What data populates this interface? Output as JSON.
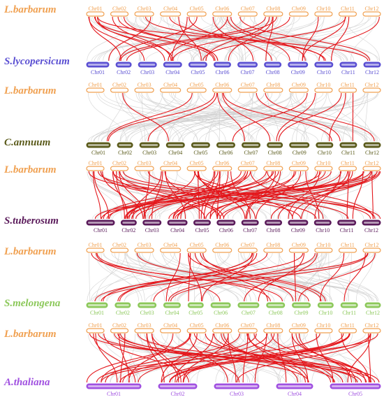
{
  "colors": {
    "link_highlight": "#e4161b",
    "link_background": "#cfcfcf"
  },
  "chart_data": {
    "type": "synteny",
    "panels": [
      {
        "top": {
          "name": "L.barbarum",
          "color": "#f0a050",
          "chromosomes": [
            "Chr01",
            "Chr02",
            "Chr03",
            "Chr04",
            "Chr05",
            "Chr06",
            "Chr07",
            "Chr08",
            "Chr09",
            "Chr10",
            "Chr11",
            "Chr12"
          ]
        },
        "bottom": {
          "name": "S.lycopersicum",
          "color": "#5a4fd2",
          "chromosomes": [
            "Chr01",
            "Chr02",
            "Chr03",
            "Chr04",
            "Chr05",
            "Chr06",
            "Chr07",
            "Chr08",
            "Chr09",
            "Chr10",
            "Chr11",
            "Chr12"
          ]
        }
      },
      {
        "top": {
          "name": "L.barbarum",
          "color": "#f0a050",
          "chromosomes": [
            "Chr01",
            "Chr02",
            "Chr03",
            "Chr04",
            "Chr05",
            "Chr06",
            "Chr07",
            "Chr08",
            "Chr09",
            "Chr10",
            "Chr11",
            "Chr12"
          ]
        },
        "bottom": {
          "name": "C.annuum",
          "color": "#5a5a1a",
          "chromosomes": [
            "Chr01",
            "Chr02",
            "Chr03",
            "Chr04",
            "Chr05",
            "Chr06",
            "Chr07",
            "Chr08",
            "Chr09",
            "Chr10",
            "Chr11",
            "Chr12"
          ]
        }
      },
      {
        "top": {
          "name": "L.barbarum",
          "color": "#f0a050",
          "chromosomes": [
            "Chr01",
            "Chr02",
            "Chr03",
            "Chr04",
            "Chr05",
            "Chr06",
            "Chr07",
            "Chr08",
            "Chr09",
            "Chr10",
            "Chr11",
            "Chr12"
          ]
        },
        "bottom": {
          "name": "S.tuberosum",
          "color": "#5a1a5a",
          "chromosomes": [
            "Chr01",
            "Chr02",
            "Chr03",
            "Chr04",
            "Chr05",
            "Chr06",
            "Chr07",
            "Chr08",
            "Chr09",
            "Chr10",
            "Chr11",
            "Chr12"
          ]
        }
      },
      {
        "top": {
          "name": "L.barbarum",
          "color": "#f0a050",
          "chromosomes": [
            "Chr01",
            "Chr02",
            "Chr03",
            "Chr04",
            "Chr05",
            "Chr06",
            "Chr07",
            "Chr08",
            "Chr09",
            "Chr10",
            "Chr11",
            "Chr12"
          ]
        },
        "bottom": {
          "name": "S.melongena",
          "color": "#8cc85a",
          "chromosomes": [
            "Chr01",
            "Chr02",
            "Chr03",
            "Chr04",
            "Chr05",
            "Chr06",
            "Chr07",
            "Chr08",
            "Chr09",
            "Chr10",
            "Chr11",
            "Chr12"
          ]
        }
      },
      {
        "top": {
          "name": "L.barbarum",
          "color": "#f0a050",
          "chromosomes": [
            "Chr01",
            "Chr02",
            "Chr03",
            "Chr04",
            "Chr05",
            "Chr06",
            "Chr07",
            "Chr08",
            "Chr09",
            "Chr10",
            "Chr11",
            "Chr12"
          ]
        },
        "bottom": {
          "name": "A.thaliana",
          "color": "#a050e0",
          "chromosomes": [
            "Chr01",
            "Chr02",
            "Chr03",
            "Chr04",
            "Chr05"
          ]
        }
      }
    ]
  }
}
